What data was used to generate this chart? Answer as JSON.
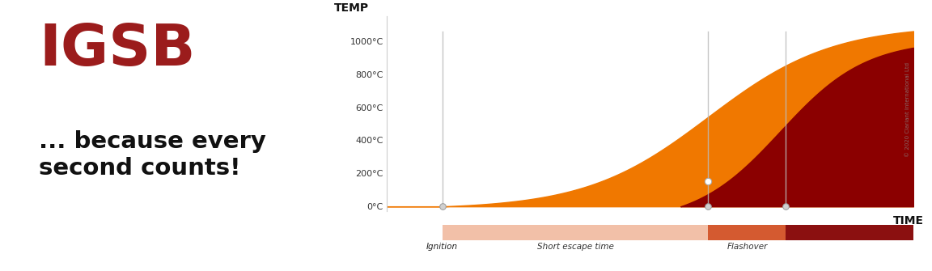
{
  "title_igsb": "IGSB",
  "title_igsb_color": "#9B1C1C",
  "subtitle": "... because every\nsecond counts!",
  "subtitle_color": "#111111",
  "ylabel": "TEMP",
  "xlabel": "TIME",
  "yticks": [
    0,
    200,
    400,
    600,
    800,
    1000
  ],
  "ytick_labels": [
    "0°C",
    "200°C",
    "400°C",
    "600°C",
    "800°C",
    "1000°C"
  ],
  "xlim": [
    0,
    9.5
  ],
  "ylim": [
    -30,
    1150
  ],
  "bg_color": "#ffffff",
  "orange_color": "#F07800",
  "dark_red_color": "#8B0000",
  "dark_red_mid_color": "#A01010",
  "ignition_x": 1.0,
  "flashover_x": 5.8,
  "fire_pen_x": 7.2,
  "copyright_text": "© 2020 Clariant International Ltd",
  "vline_color": "#bbbbbb",
  "phase_bar_y": -0.18,
  "phase_bar_height": 0.09
}
